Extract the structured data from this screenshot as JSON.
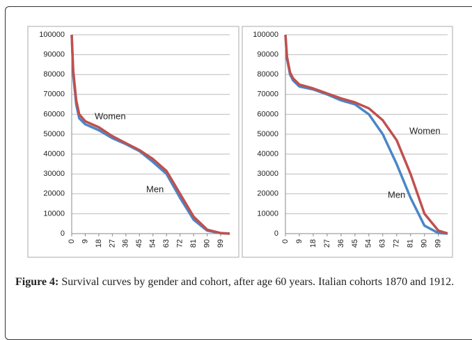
{
  "chart_data": [
    {
      "type": "line",
      "x": [
        0,
        1,
        3,
        5,
        9,
        18,
        27,
        36,
        45,
        54,
        63,
        72,
        81,
        90,
        99,
        105
      ],
      "xlim": [
        0,
        105
      ],
      "xticks": [
        0,
        9,
        18,
        27,
        36,
        45,
        54,
        63,
        72,
        81,
        90,
        99
      ],
      "ylim": [
        0,
        100000
      ],
      "yticks": [
        0,
        10000,
        20000,
        30000,
        40000,
        50000,
        60000,
        70000,
        80000,
        90000,
        100000
      ],
      "grid": true,
      "series": [
        {
          "name": "Men",
          "color": "#4a86c8",
          "values": [
            100000,
            80000,
            65000,
            58000,
            55000,
            52000,
            48000,
            45000,
            41500,
            36000,
            30000,
            18000,
            7000,
            1500,
            200,
            0
          ]
        },
        {
          "name": "Women",
          "color": "#c0504d",
          "values": [
            100000,
            82000,
            67000,
            60000,
            56500,
            53500,
            49000,
            45500,
            42000,
            37500,
            31500,
            20000,
            8500,
            2000,
            300,
            0
          ]
        }
      ]
    },
    {
      "type": "line",
      "x": [
        0,
        1,
        3,
        5,
        9,
        18,
        27,
        36,
        45,
        54,
        63,
        72,
        81,
        90,
        99,
        105
      ],
      "xlim": [
        0,
        105
      ],
      "xticks": [
        0,
        9,
        18,
        27,
        36,
        45,
        54,
        63,
        72,
        81,
        90,
        99
      ],
      "ylim": [
        0,
        100000
      ],
      "yticks": [
        0,
        10000,
        20000,
        30000,
        40000,
        50000,
        60000,
        70000,
        80000,
        90000,
        100000
      ],
      "grid": true,
      "series": [
        {
          "name": "Men",
          "color": "#4a86c8",
          "values": [
            100000,
            88000,
            80000,
            77000,
            74000,
            72500,
            70000,
            67000,
            65000,
            60000,
            50000,
            35000,
            18000,
            4000,
            300,
            0
          ]
        },
        {
          "name": "Women",
          "color": "#c0504d",
          "values": [
            100000,
            89000,
            81000,
            78000,
            75000,
            73000,
            70500,
            68000,
            66000,
            63000,
            57000,
            47000,
            30000,
            10000,
            1500,
            100
          ]
        }
      ]
    }
  ],
  "caption": {
    "label": "Figure 4:",
    "text": "Survival curves by gender and cohort, after age 60 years. Italian cohorts 1870 and 1912."
  }
}
